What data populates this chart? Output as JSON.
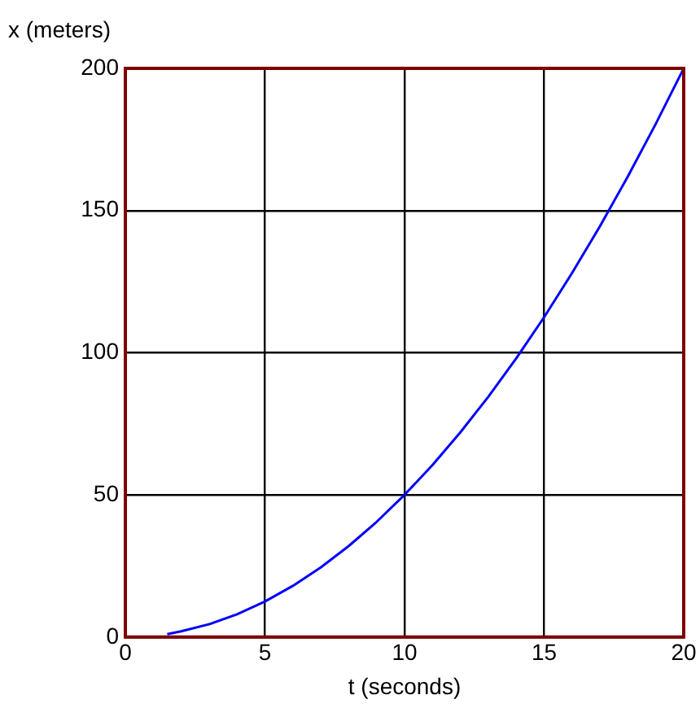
{
  "chart_data": {
    "type": "line",
    "xlabel": "t (seconds)",
    "ylabel": "x (meters)",
    "xlim": [
      0,
      20
    ],
    "xticks": [
      0,
      5,
      10,
      15,
      20
    ],
    "ylim": [
      0,
      200
    ],
    "yticks": [
      0,
      50,
      100,
      150,
      200
    ],
    "grid": true,
    "legend": false,
    "marker": "none",
    "line_style": "solid",
    "series": [
      {
        "color": "#0000ff",
        "x": [
          1.5,
          2,
          3,
          4,
          5,
          6,
          7,
          8,
          9,
          10,
          11,
          12,
          13,
          14,
          15,
          16,
          17,
          18,
          19,
          20
        ],
        "values": [
          1,
          2,
          4.5,
          8,
          12.5,
          18,
          24.5,
          32,
          40.5,
          50,
          60.5,
          72,
          84.5,
          98,
          112.5,
          128,
          144.5,
          162,
          180.5,
          200
        ]
      }
    ]
  }
}
